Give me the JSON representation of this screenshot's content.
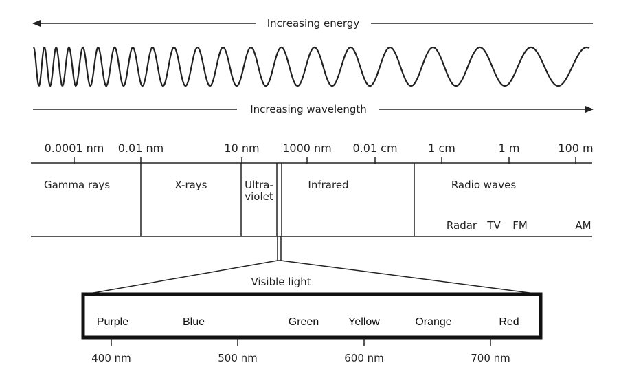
{
  "energy_label": "Increasing energy",
  "wavelength_label": "Increasing wavelength",
  "scale_ticks": [
    "0.0001 nm",
    "0.01 nm",
    "10 nm",
    "1000 nm",
    "0.01 cm",
    "1 cm",
    "1 m",
    "100 m"
  ],
  "regions": {
    "gamma": "Gamma rays",
    "xrays": "X-rays",
    "ultraviolet_1": "Ultra-",
    "ultraviolet_2": "violet",
    "infrared": "Infrared",
    "radio": "Radio waves"
  },
  "radio_subbands": [
    "Radar",
    "TV",
    "FM",
    "AM"
  ],
  "visible_light_label": "Visible light",
  "visible_colors": [
    "Purple",
    "Blue",
    "Green",
    "Yellow",
    "Orange",
    "Red"
  ],
  "visible_scale": [
    "400 nm",
    "500 nm",
    "600 nm",
    "700 nm"
  ],
  "colors": {
    "ink": "#222222",
    "background": "#ffffff"
  }
}
